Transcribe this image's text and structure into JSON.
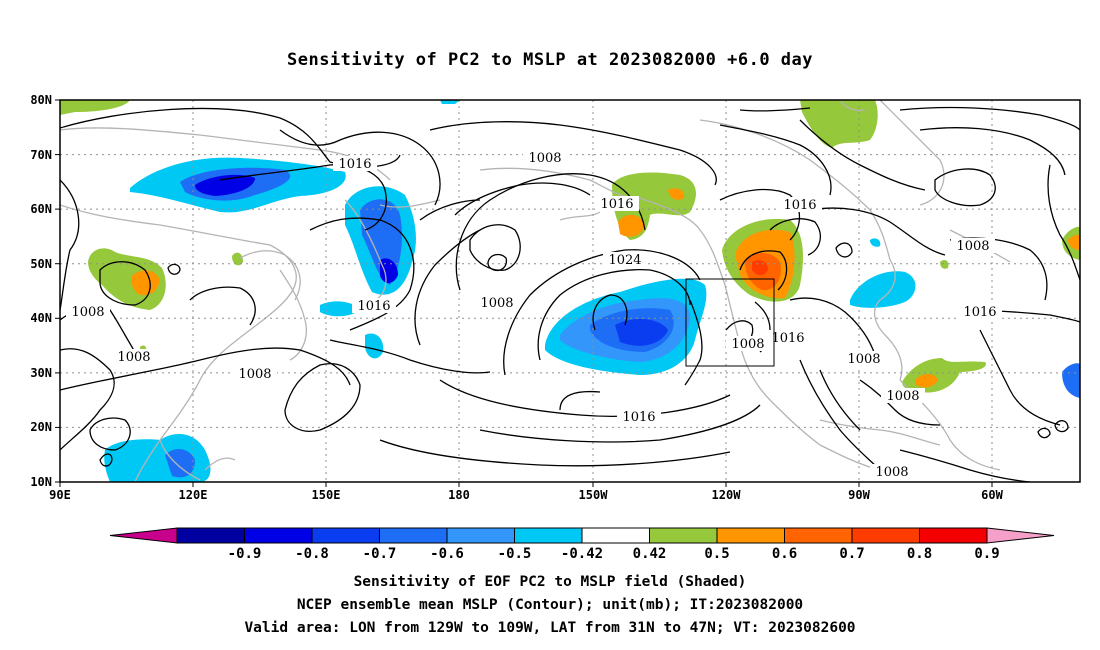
{
  "title": "Sensitivity of PC2 to MSLP at 2023082000 +6.0 day",
  "map": {
    "lat_labels": [
      "80N",
      "70N",
      "60N",
      "50N",
      "40N",
      "30N",
      "20N",
      "10N"
    ],
    "lon_labels": [
      "90E",
      "120E",
      "150E",
      "180",
      "150W",
      "120W",
      "90W",
      "60W"
    ],
    "contour_labels": [
      "1016",
      "1008",
      "1016",
      "1024",
      "1008",
      "1016",
      "1016",
      "1008",
      "1008",
      "1008",
      "1008",
      "1016",
      "1008",
      "1016",
      "1008",
      "1008",
      "1016",
      "1008",
      "1008"
    ],
    "valid_area_box": {
      "lon_min": "129W",
      "lon_max": "109W",
      "lat_min": "31N",
      "lat_max": "47N"
    }
  },
  "colorbar": {
    "labels": [
      "-0.9",
      "-0.8",
      "-0.7",
      "-0.6",
      "-0.5",
      "-0.42",
      "0.42",
      "0.5",
      "0.6",
      "0.7",
      "0.8",
      "0.9"
    ],
    "colors": [
      "#0000a0",
      "#0000e6",
      "#0a3cf0",
      "#1e6ef5",
      "#3296fa",
      "#00c8f5",
      "#ffffff",
      "#96c83c",
      "#ff9600",
      "#ff6400",
      "#ff3c00",
      "#f50000"
    ],
    "under_color": "#c8008c",
    "over_color": "#f5a0c8"
  },
  "captions": {
    "line1": "Sensitivity of EOF PC2 to MSLP field (Shaded)",
    "line2": "NCEP ensemble mean MSLP (Contour); unit(mb); IT:2023082000",
    "line3": "Valid area: LON from 129W to 109W, LAT from 31N to 47N; VT: 2023082600"
  }
}
